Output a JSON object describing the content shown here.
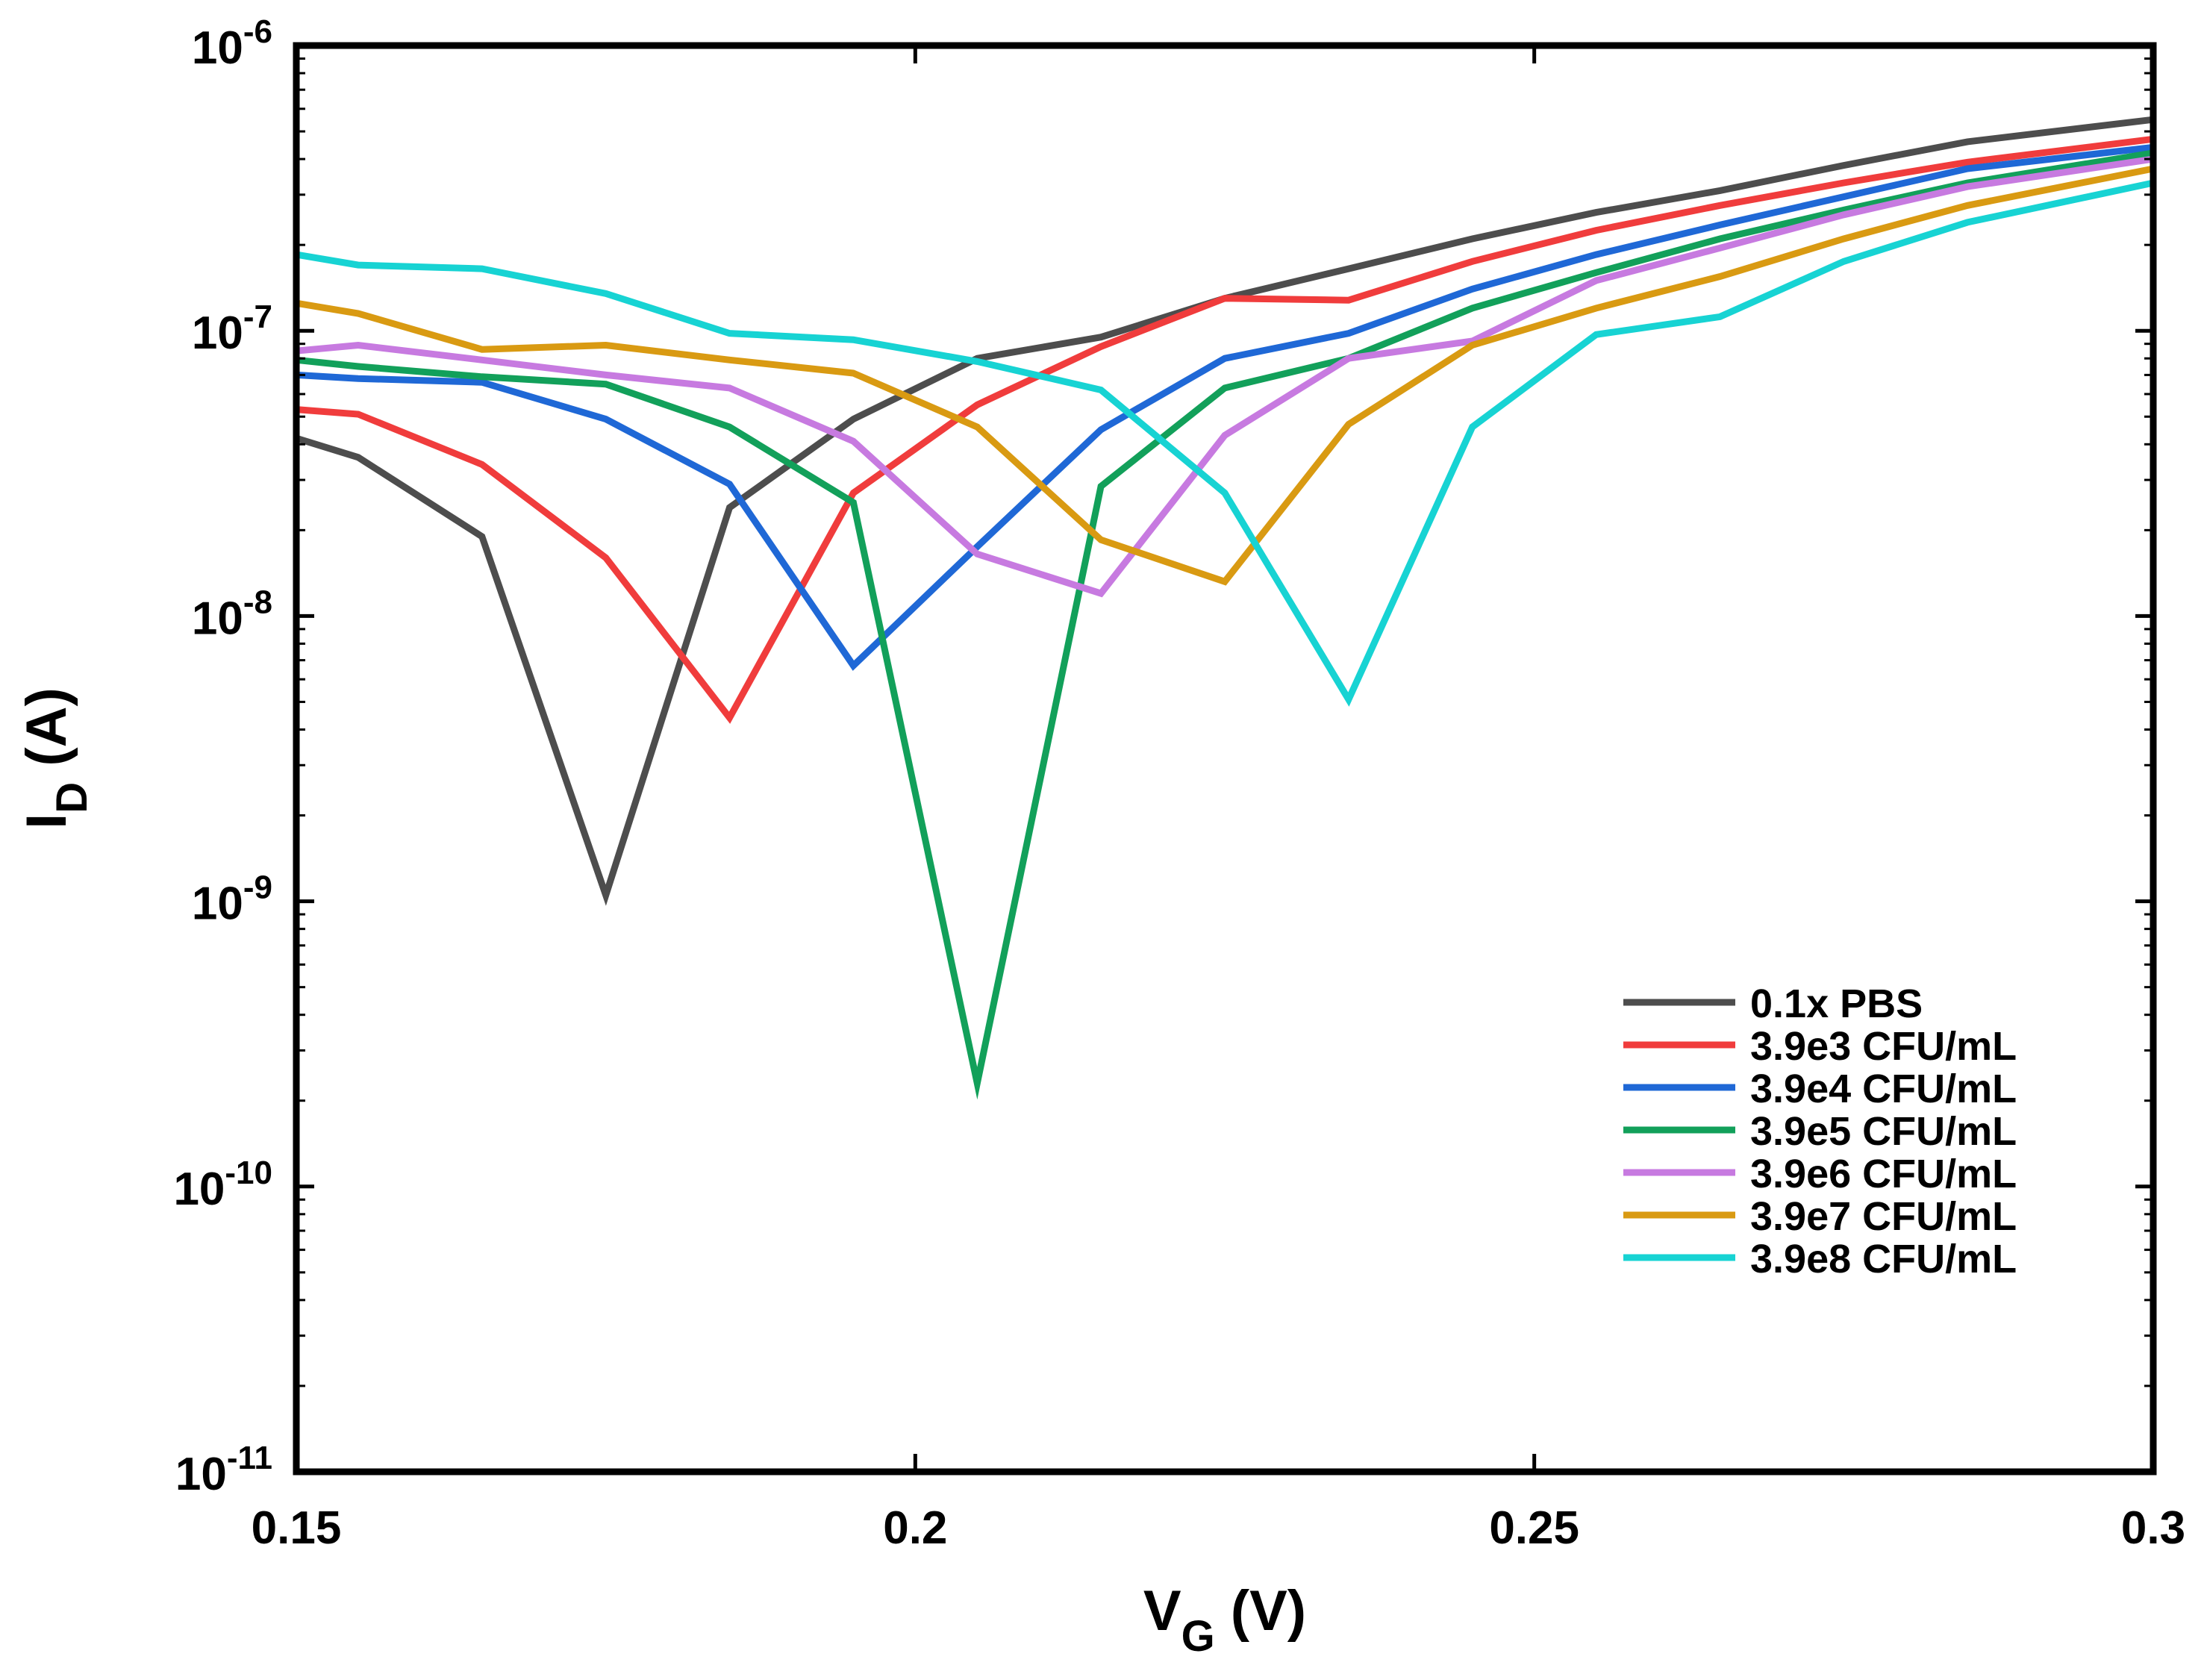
{
  "chart_data": {
    "type": "line",
    "title": "",
    "xlabel": {
      "main": "V",
      "sub": "G",
      "unit": " (V)"
    },
    "ylabel": {
      "main": "I",
      "sub": "D",
      "unit": " (A)"
    },
    "xlim": [
      0.15,
      0.3
    ],
    "ylim": [
      1e-11,
      1e-06
    ],
    "yscale": "log",
    "grid": false,
    "legend_position": "bottom-right",
    "x_ticks": [
      {
        "value": 0.15,
        "label": "0.15"
      },
      {
        "value": 0.2,
        "label": "0.2"
      },
      {
        "value": 0.25,
        "label": "0.25"
      },
      {
        "value": 0.3,
        "label": "0.3"
      }
    ],
    "y_ticks": [
      {
        "value": 1e-06,
        "base": "10",
        "exp": "-6"
      },
      {
        "value": 1e-07,
        "base": "10",
        "exp": "-7"
      },
      {
        "value": 1e-08,
        "base": "10",
        "exp": "-8"
      },
      {
        "value": 1e-09,
        "base": "10",
        "exp": "-9"
      },
      {
        "value": 1e-10,
        "base": "10",
        "exp": "-10"
      },
      {
        "value": 1e-11,
        "base": "10",
        "exp": "-11"
      }
    ],
    "series": [
      {
        "name": "0.1x PBS",
        "color": "#4d4d4d",
        "x": [
          0.15,
          0.155,
          0.165,
          0.175,
          0.185,
          0.195,
          0.205,
          0.215,
          0.225,
          0.235,
          0.245,
          0.255,
          0.265,
          0.275,
          0.285,
          0.3
        ],
        "y": [
          4.2e-08,
          3.6e-08,
          1.9e-08,
          1.05e-09,
          2.4e-08,
          4.9e-08,
          8e-08,
          9.5e-08,
          1.3e-07,
          1.65e-07,
          2.1e-07,
          2.6e-07,
          3.1e-07,
          3.8e-07,
          4.6e-07,
          5.5e-07
        ]
      },
      {
        "name": "3.9e3 CFU/mL",
        "color": "#f03c3c",
        "x": [
          0.15,
          0.155,
          0.165,
          0.175,
          0.185,
          0.195,
          0.205,
          0.215,
          0.225,
          0.235,
          0.245,
          0.255,
          0.265,
          0.275,
          0.285,
          0.3
        ],
        "y": [
          5.3e-08,
          5.1e-08,
          3.4e-08,
          1.6e-08,
          4.4e-09,
          2.7e-08,
          5.5e-08,
          8.8e-08,
          1.3e-07,
          1.28e-07,
          1.75e-07,
          2.25e-07,
          2.75e-07,
          3.3e-07,
          3.9e-07,
          4.7e-07
        ]
      },
      {
        "name": "3.9e4 CFU/mL",
        "color": "#1f68d6",
        "x": [
          0.15,
          0.155,
          0.165,
          0.175,
          0.185,
          0.195,
          0.205,
          0.215,
          0.225,
          0.235,
          0.245,
          0.255,
          0.265,
          0.275,
          0.285,
          0.3
        ],
        "y": [
          7e-08,
          6.8e-08,
          6.6e-08,
          4.9e-08,
          2.9e-08,
          6.7e-09,
          1.75e-08,
          4.5e-08,
          8e-08,
          9.8e-08,
          1.4e-07,
          1.85e-07,
          2.35e-07,
          2.95e-07,
          3.7e-07,
          4.4e-07
        ]
      },
      {
        "name": "3.9e5 CFU/mL",
        "color": "#12a05a",
        "x": [
          0.15,
          0.155,
          0.165,
          0.175,
          0.185,
          0.195,
          0.205,
          0.215,
          0.225,
          0.235,
          0.245,
          0.255,
          0.265,
          0.275,
          0.285,
          0.3
        ],
        "y": [
          7.9e-08,
          7.5e-08,
          6.9e-08,
          6.5e-08,
          4.6e-08,
          2.5e-08,
          2.3e-10,
          2.85e-08,
          6.3e-08,
          8e-08,
          1.2e-07,
          1.6e-07,
          2.1e-07,
          2.65e-07,
          3.3e-07,
          4.2e-07
        ]
      },
      {
        "name": "3.9e6 CFU/mL",
        "color": "#c77ae0",
        "x": [
          0.15,
          0.155,
          0.165,
          0.175,
          0.185,
          0.195,
          0.205,
          0.215,
          0.225,
          0.235,
          0.245,
          0.255,
          0.265,
          0.275,
          0.285,
          0.3
        ],
        "y": [
          8.5e-08,
          8.9e-08,
          7.9e-08,
          7e-08,
          6.3e-08,
          4.1e-08,
          1.65e-08,
          1.2e-08,
          4.3e-08,
          8e-08,
          9.2e-08,
          1.5e-07,
          1.95e-07,
          2.55e-07,
          3.2e-07,
          4e-07
        ]
      },
      {
        "name": "3.9e7 CFU/mL",
        "color": "#d99a12",
        "x": [
          0.15,
          0.155,
          0.165,
          0.175,
          0.185,
          0.195,
          0.205,
          0.215,
          0.225,
          0.235,
          0.245,
          0.255,
          0.265,
          0.275,
          0.285,
          0.3
        ],
        "y": [
          1.25e-07,
          1.15e-07,
          8.6e-08,
          8.9e-08,
          7.9e-08,
          7.1e-08,
          4.6e-08,
          1.85e-08,
          1.32e-08,
          4.7e-08,
          8.9e-08,
          1.2e-07,
          1.55e-07,
          2.1e-07,
          2.75e-07,
          3.7e-07
        ]
      },
      {
        "name": "3.9e8 CFU/mL",
        "color": "#17d3d3",
        "x": [
          0.15,
          0.155,
          0.165,
          0.175,
          0.185,
          0.195,
          0.205,
          0.215,
          0.225,
          0.235,
          0.245,
          0.255,
          0.265,
          0.275,
          0.285,
          0.3
        ],
        "y": [
          1.85e-07,
          1.7e-07,
          1.65e-07,
          1.35e-07,
          9.8e-08,
          9.3e-08,
          7.8e-08,
          6.2e-08,
          2.7e-08,
          5.1e-09,
          4.6e-08,
          9.7e-08,
          1.12e-07,
          1.75e-07,
          2.4e-07,
          3.3e-07
        ]
      }
    ]
  }
}
